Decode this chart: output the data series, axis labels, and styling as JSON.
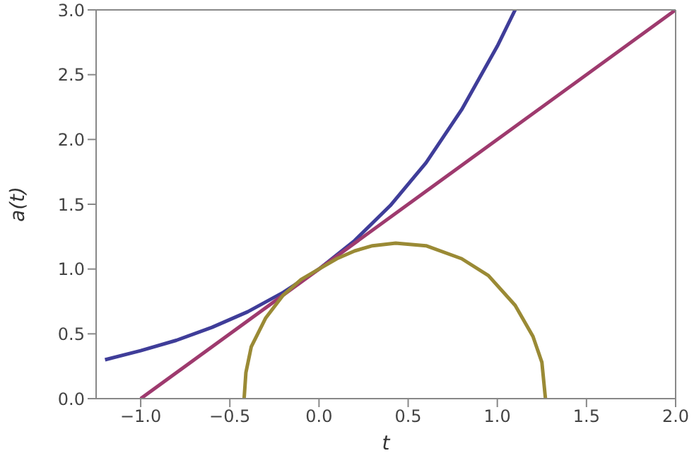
{
  "chart_data": {
    "type": "line",
    "xlabel": "t",
    "ylabel": "a(t)",
    "xlim": [
      -1.25,
      2.0
    ],
    "xticks": [
      {
        "value": -1,
        "label": "−1.0"
      },
      {
        "value": -0.5,
        "label": "−0.5"
      },
      {
        "value": 0,
        "label": "0.0"
      },
      {
        "value": 0.5,
        "label": "0.5"
      },
      {
        "value": 1,
        "label": "1.0"
      },
      {
        "value": 1.5,
        "label": "1.5"
      },
      {
        "value": 2,
        "label": "2.0"
      }
    ],
    "ylim": [
      0,
      3
    ],
    "yticks": [
      {
        "value": 0,
        "label": "0.0"
      },
      {
        "value": 0.5,
        "label": "0.5"
      },
      {
        "value": 1,
        "label": "1.0"
      },
      {
        "value": 1.5,
        "label": "1.5"
      },
      {
        "value": 2,
        "label": "2.0"
      },
      {
        "value": 2.5,
        "label": "2.5"
      },
      {
        "value": 3,
        "label": "3.0"
      }
    ],
    "grid": false,
    "legend": false,
    "marker": "none",
    "line_style": "solid",
    "series": [
      {
        "color": "#3f3d99",
        "x": [
          -1.2,
          -1.0,
          -0.8,
          -0.6,
          -0.4,
          -0.2,
          0,
          0.2,
          0.4,
          0.6,
          0.8,
          1.0,
          1.1
        ],
        "values": [
          0.3,
          0.37,
          0.45,
          0.55,
          0.67,
          0.82,
          1.0,
          1.22,
          1.49,
          1.82,
          2.23,
          2.72,
          3.0
        ]
      },
      {
        "color": "#9e3a6e",
        "x": [
          -1.0,
          2.0
        ],
        "values": [
          0,
          3
        ]
      },
      {
        "color": "#9a8a35",
        "x": [
          -0.42,
          -0.41,
          -0.38,
          -0.3,
          -0.2,
          -0.1,
          0,
          0.1,
          0.2,
          0.3,
          0.43,
          0.6,
          0.8,
          0.95,
          1.1,
          1.2,
          1.25,
          1.27
        ],
        "values": [
          0,
          0.2,
          0.4,
          0.62,
          0.8,
          0.92,
          1.0,
          1.08,
          1.14,
          1.18,
          1.2,
          1.18,
          1.08,
          0.95,
          0.72,
          0.48,
          0.28,
          0
        ]
      }
    ]
  }
}
